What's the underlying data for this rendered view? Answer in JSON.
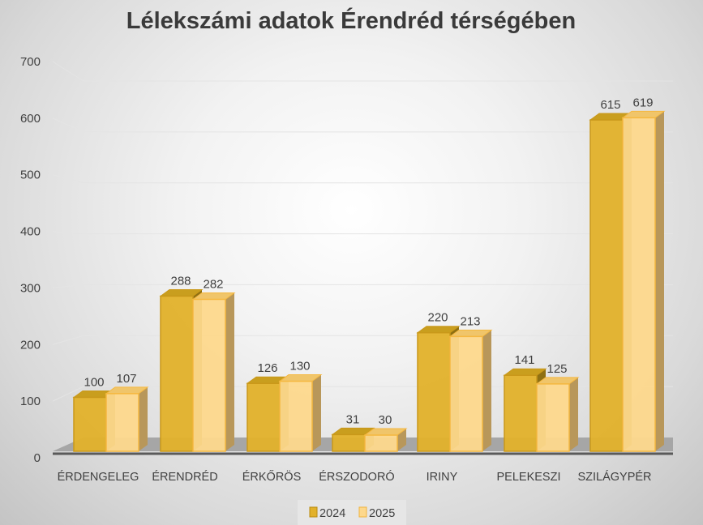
{
  "chart_data": {
    "type": "bar",
    "style": "3d-clustered-column",
    "title": "Lélekszámi adatok Érendréd térségében",
    "categories": [
      "ÉRDENGELEG",
      "ÉRENDRÉD",
      "ÉRKŐRÖS",
      "ÉRSZODORÓ",
      "IRINY",
      "PELEKESZI",
      "SZILÁGYPÉR"
    ],
    "series": [
      {
        "name": "2024",
        "values": [
          100,
          288,
          126,
          31,
          220,
          141,
          615
        ],
        "color": "#E2B12A"
      },
      {
        "name": "2025",
        "values": [
          107,
          282,
          130,
          30,
          213,
          125,
          619
        ],
        "color": "#FDD88C"
      }
    ],
    "ylim": [
      0,
      700
    ],
    "yticks": [
      0,
      100,
      200,
      300,
      400,
      500,
      600,
      700
    ],
    "grid": true,
    "data_labels": true,
    "legend": "bottom"
  }
}
